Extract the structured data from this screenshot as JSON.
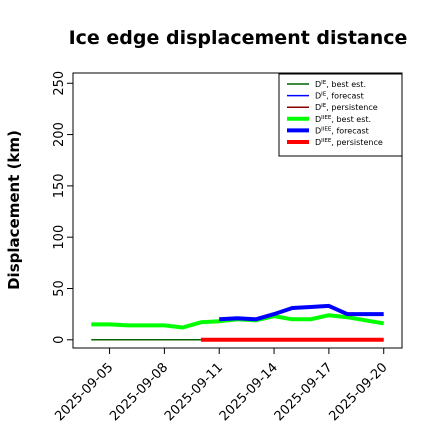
{
  "chart_data": {
    "type": "line",
    "title": "Ice edge displacement distance",
    "xlabel": "",
    "ylabel": "Displacement (km)",
    "ylim": [
      -8,
      260
    ],
    "xlim": [
      "2025-09-03",
      "2025-09-21"
    ],
    "yticks": [
      "0",
      "50",
      "100",
      "150",
      "200",
      "250"
    ],
    "xticks": [
      {
        "date": "2025-09-05",
        "label": "2025-09-05",
        "color": "#000000"
      },
      {
        "date": "2025-09-08",
        "label": "2025-09-08",
        "color": "#000000"
      },
      {
        "date": "2025-09-11",
        "label": "2025-09-11",
        "color": "#228b22"
      },
      {
        "date": "2025-09-14",
        "label": "2025-09-14",
        "color": "#000000"
      },
      {
        "date": "2025-09-17",
        "label": "2025-09-17",
        "color": "#000000"
      },
      {
        "date": "2025-09-20",
        "label": "2025-09-20",
        "color": "#000000"
      }
    ],
    "grid": false,
    "legend_position": "top-right",
    "series": [
      {
        "id": "de_best",
        "name": "D",
        "sup": "IE",
        "tail": ", best est.",
        "color": "#006400",
        "thick": false,
        "x": [
          "2025-09-04",
          "2025-09-06",
          "2025-09-08",
          "2025-09-10"
        ],
        "y": [
          0,
          0,
          0,
          0
        ]
      },
      {
        "id": "de_forecast",
        "name": "D",
        "sup": "IE",
        "tail": ", forecast",
        "color": "#0000ff",
        "thick": false,
        "x": [],
        "y": []
      },
      {
        "id": "de_persistence",
        "name": "D",
        "sup": "IE",
        "tail": ", persistence",
        "color": "#8b0000",
        "thick": false,
        "x": [
          "2025-09-10",
          "2025-09-20"
        ],
        "y": [
          0,
          0
        ]
      },
      {
        "id": "dm_best",
        "name": "D",
        "sup": "IIEE",
        "tail": ", best est.",
        "color": "#00ff00",
        "thick": true,
        "x": [
          "2025-09-04",
          "2025-09-05",
          "2025-09-06",
          "2025-09-07",
          "2025-09-08",
          "2025-09-09",
          "2025-09-10",
          "2025-09-11",
          "2025-09-12",
          "2025-09-13",
          "2025-09-14",
          "2025-09-15",
          "2025-09-16",
          "2025-09-17",
          "2025-09-18",
          "2025-09-19",
          "2025-09-20"
        ],
        "y": [
          15,
          15,
          14,
          14,
          14,
          12,
          17,
          18,
          20,
          19,
          23,
          20,
          20,
          24,
          22,
          19,
          16
        ]
      },
      {
        "id": "dm_forecast",
        "name": "D",
        "sup": "IIEE",
        "tail": ", forecast",
        "color": "#0000ff",
        "thick": true,
        "x": [
          "2025-09-11",
          "2025-09-12",
          "2025-09-13",
          "2025-09-14",
          "2025-09-15",
          "2025-09-16",
          "2025-09-17",
          "2025-09-18",
          "2025-09-19",
          "2025-09-20"
        ],
        "y": [
          20,
          21,
          20,
          25,
          31,
          32,
          33,
          25,
          25,
          25
        ]
      },
      {
        "id": "dm_persistence",
        "name": "D",
        "sup": "IIEE",
        "tail": ", persistence",
        "color": "#ff0000",
        "thick": true,
        "x": [
          "2025-09-10",
          "2025-09-20"
        ],
        "y": [
          0,
          0
        ]
      }
    ]
  }
}
